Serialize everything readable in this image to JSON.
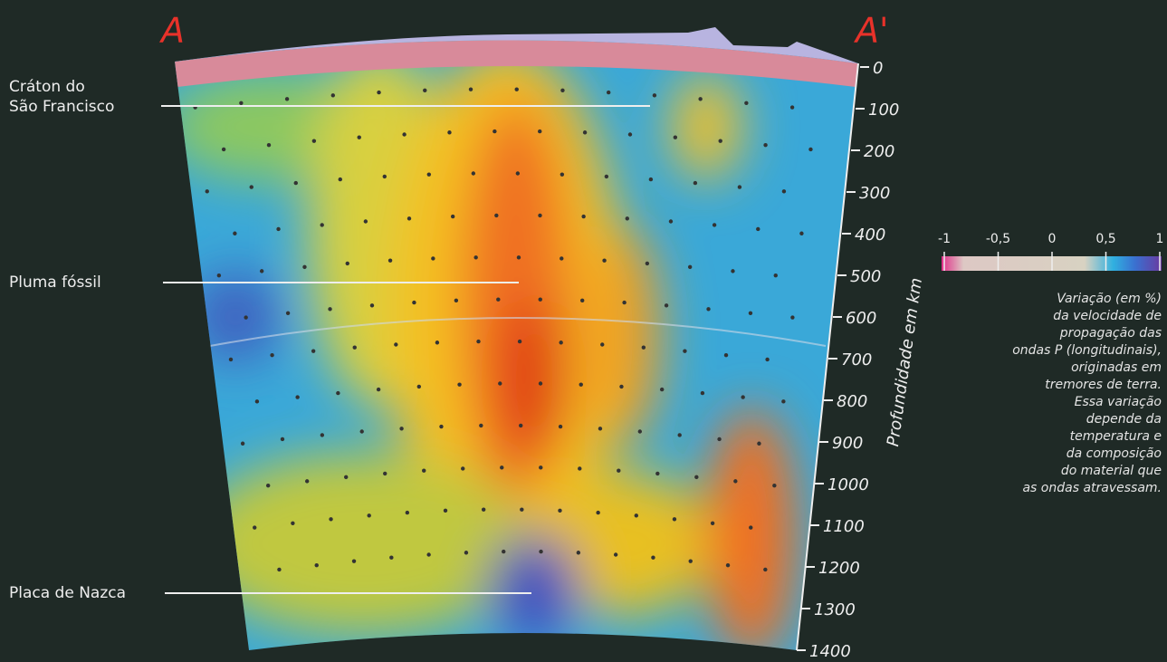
{
  "section": {
    "left_label": "A",
    "right_label": "A'"
  },
  "annotations": [
    {
      "lines": [
        "Cráton do",
        "São Francisco"
      ]
    },
    {
      "lines": [
        "Pluma fóssil"
      ]
    },
    {
      "lines": [
        "Placa de Nazca"
      ]
    }
  ],
  "depth_axis": {
    "label": "Profundidade em km",
    "lim": [
      0,
      1400
    ],
    "ticks": [
      0,
      100,
      200,
      300,
      400,
      500,
      600,
      700,
      800,
      900,
      1000,
      1100,
      1200,
      1300,
      1400
    ]
  },
  "colorbar": {
    "lim": [
      -1,
      1
    ],
    "ticks": [
      -1,
      {
        "value": -0.5,
        "label": "-0,5"
      },
      0,
      {
        "value": 0.5,
        "label": "0,5"
      },
      1
    ],
    "caption": [
      "Variação (em %)",
      "da velocidade de",
      "propagação das",
      "ondas P (longitudinais),",
      "originadas em",
      "tremores de terra.",
      "Essa variação",
      "depende da",
      "temperatura e",
      "da composição",
      "do material que",
      "as ondas atravessam."
    ]
  }
}
